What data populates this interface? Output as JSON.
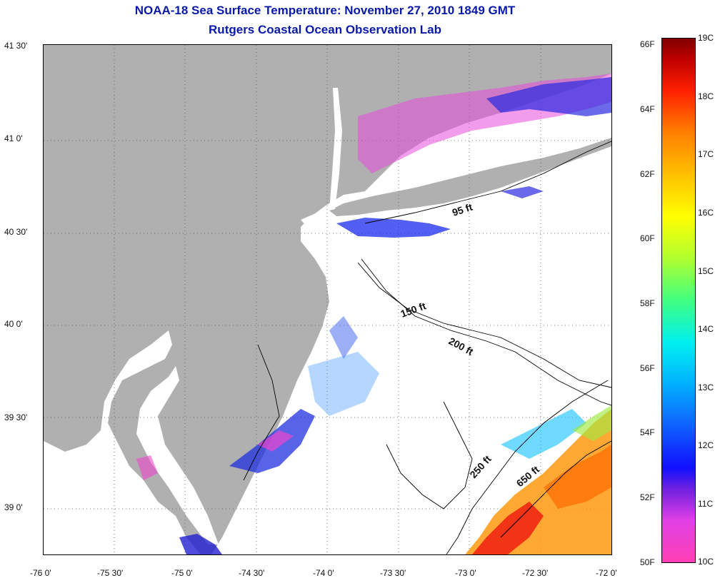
{
  "title": {
    "line1": "NOAA-18 Sea Surface Temperature:  November 27, 2010 1849 GMT",
    "line2": "Rutgers Coastal Ocean Observation Lab"
  },
  "axes": {
    "lat_labels": [
      "41 30'",
      "41 0'",
      "40 30'",
      "40 0'",
      "39 30'",
      "39 0'"
    ],
    "lon_labels": [
      "-76 0'",
      "-75 30'",
      "-75 0'",
      "-74 30'",
      "-74 0'",
      "-73 30'",
      "-73 0'",
      "-72 30'",
      "-72 0'"
    ]
  },
  "contours": {
    "c95": "95 ft",
    "c150": "150 ft",
    "c200": "200 ft",
    "c250": "250 ft",
    "c650": "650 ft"
  },
  "colorbar": {
    "fahrenheit": [
      "66F",
      "64F",
      "62F",
      "60F",
      "58F",
      "56F",
      "54F",
      "52F",
      "50F"
    ],
    "celsius": [
      "19C",
      "18C",
      "17C",
      "16C",
      "15C",
      "14C",
      "13C",
      "12C",
      "11C",
      "10C"
    ]
  },
  "colors": {
    "title": "#0a1aa8",
    "land": "#b0b0b0",
    "water_no_data": "#ffffff"
  }
}
